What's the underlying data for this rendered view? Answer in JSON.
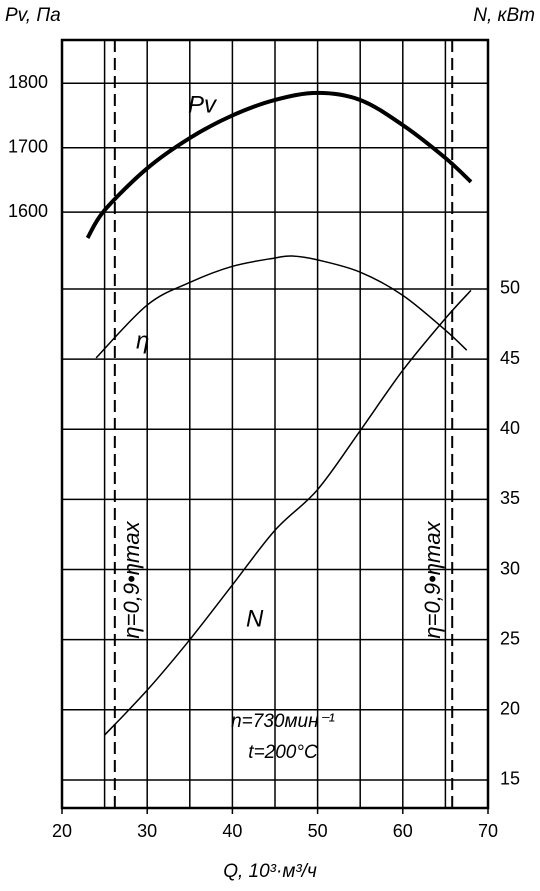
{
  "chart_data": {
    "type": "line",
    "y_label": "Pv, Па",
    "y2_label": "N, кВт",
    "x_label": "Q, 10³·м³/ч",
    "xlim": [
      20,
      70
    ],
    "xticks": [
      20,
      30,
      40,
      50,
      60,
      70
    ],
    "xgrid": [
      25,
      30,
      35,
      40,
      45,
      50,
      55,
      60,
      65,
      70
    ],
    "ylim": [
      676,
      1867
    ],
    "yticks": [
      1600,
      1700,
      1800
    ],
    "y2lim": [
      13,
      67.75
    ],
    "y2ticks": [
      15,
      20,
      25,
      30,
      35,
      40,
      45,
      50
    ],
    "grid": true,
    "color": "#000",
    "series": [
      {
        "name": "Pv",
        "color": "#000",
        "width": 4,
        "x": [
          23,
          25,
          30,
          35,
          40,
          45,
          50,
          55,
          60,
          65,
          68
        ],
        "values": [
          1560,
          1603,
          1668,
          1715,
          1750,
          1774,
          1785,
          1774,
          1735,
          1684,
          1647
        ]
      },
      {
        "name": "η",
        "color": "#000",
        "width": 1.5,
        "x": [
          24,
          30,
          35,
          40,
          45,
          47,
          50,
          55,
          60,
          65,
          67.5
        ],
        "values": [
          1374,
          1456,
          1491,
          1516,
          1529,
          1532,
          1526,
          1507,
          1471,
          1417,
          1386
        ]
      },
      {
        "name": "N",
        "color": "#000",
        "width": 1.5,
        "axis": "y2",
        "x": [
          25,
          30,
          35,
          40,
          45,
          50,
          55,
          60,
          65,
          68
        ],
        "values": [
          18.2,
          21.4,
          25.0,
          28.9,
          32.8,
          35.7,
          39.9,
          44.2,
          47.9,
          49.9
        ]
      }
    ],
    "bounds": [
      26.2,
      65.8
    ],
    "bound_label": "η=0,9•ηmax",
    "annotations": [
      "n=730мин⁻¹",
      "t=200°C"
    ]
  }
}
